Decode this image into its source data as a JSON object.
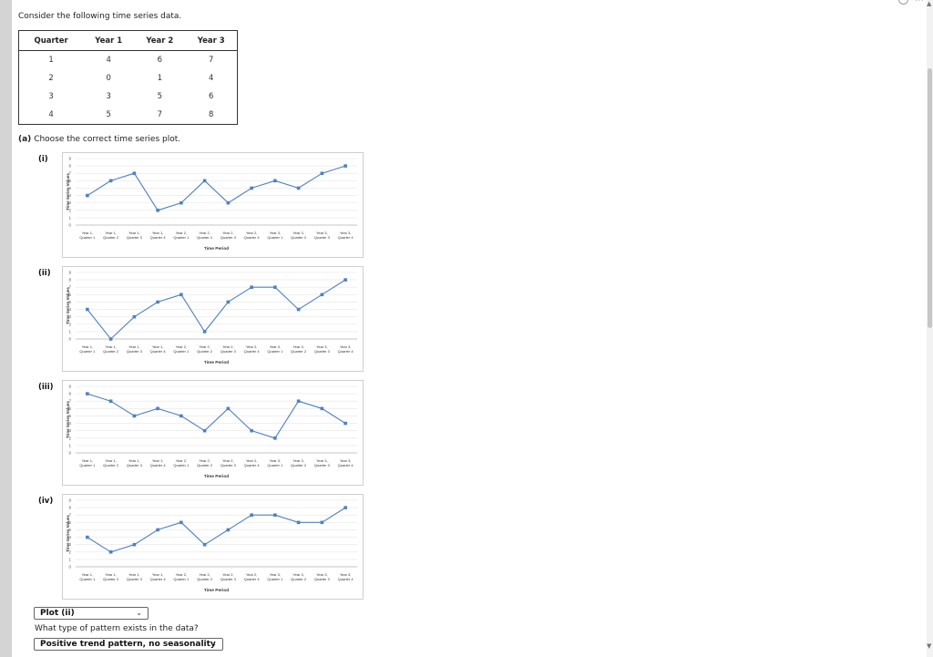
{
  "intro": "Consider the following time series data.",
  "table": {
    "headers": [
      "Quarter",
      "Year 1",
      "Year 2",
      "Year 3"
    ],
    "rows": [
      [
        "1",
        "4",
        "6",
        "7"
      ],
      [
        "2",
        "0",
        "1",
        "4"
      ],
      [
        "3",
        "3",
        "5",
        "6"
      ],
      [
        "4",
        "5",
        "7",
        "8"
      ]
    ]
  },
  "part_a": {
    "label": "(a)",
    "text": "Choose the correct time series plot."
  },
  "plots": [
    {
      "label": "(i)"
    },
    {
      "label": "(ii)"
    },
    {
      "label": "(iii)"
    },
    {
      "label": "(iv)"
    }
  ],
  "answer1": "Plot (ii)",
  "question2": "What type of pattern exists in the data?",
  "answer2": "Positive trend pattern, no seasonality",
  "chart_data": [
    {
      "type": "line",
      "title": "",
      "xlabel": "Time Period",
      "ylabel": "Time Series Values",
      "ylim": [
        0,
        9
      ],
      "y_ticks": [
        "0",
        "1",
        "2",
        "3",
        "4",
        "5",
        "6",
        "7",
        "8",
        "9"
      ],
      "categories": [
        [
          "Year 1,",
          "Quarter 1"
        ],
        [
          "Year 1,",
          "Quarter 2"
        ],
        [
          "Year 1,",
          "Quarter 3"
        ],
        [
          "Year 1,",
          "Quarter 4"
        ],
        [
          "Year 2,",
          "Quarter 1"
        ],
        [
          "Year 2,",
          "Quarter 2"
        ],
        [
          "Year 2,",
          "Quarter 3"
        ],
        [
          "Year 2,",
          "Quarter 4"
        ],
        [
          "Year 3,",
          "Quarter 1"
        ],
        [
          "Year 3,",
          "Quarter 2"
        ],
        [
          "Year 3,",
          "Quarter 3"
        ],
        [
          "Year 3,",
          "Quarter 4"
        ]
      ],
      "values": [
        4,
        6,
        7,
        2,
        3,
        6,
        3,
        5,
        6,
        5,
        7,
        8
      ],
      "color": "#4f81bd",
      "grid": true
    },
    {
      "type": "line",
      "title": "",
      "xlabel": "Time Period",
      "ylabel": "Time Series Values",
      "ylim": [
        0,
        9
      ],
      "y_ticks": [
        "0",
        "1",
        "2",
        "3",
        "4",
        "5",
        "6",
        "7",
        "8",
        "9"
      ],
      "categories": [
        [
          "Year 1,",
          "Quarter 1"
        ],
        [
          "Year 1,",
          "Quarter 2"
        ],
        [
          "Year 1,",
          "Quarter 3"
        ],
        [
          "Year 1,",
          "Quarter 4"
        ],
        [
          "Year 2,",
          "Quarter 1"
        ],
        [
          "Year 2,",
          "Quarter 2"
        ],
        [
          "Year 2,",
          "Quarter 3"
        ],
        [
          "Year 2,",
          "Quarter 4"
        ],
        [
          "Year 3,",
          "Quarter 1"
        ],
        [
          "Year 3,",
          "Quarter 2"
        ],
        [
          "Year 3,",
          "Quarter 3"
        ],
        [
          "Year 3,",
          "Quarter 4"
        ]
      ],
      "values": [
        4,
        0,
        3,
        5,
        6,
        1,
        5,
        7,
        7,
        4,
        6,
        8
      ],
      "color": "#4f81bd",
      "grid": true
    },
    {
      "type": "line",
      "title": "",
      "xlabel": "Time Period",
      "ylabel": "Time Series Values",
      "ylim": [
        0,
        9
      ],
      "y_ticks": [
        "0",
        "1",
        "2",
        "3",
        "4",
        "5",
        "6",
        "7",
        "8",
        "9"
      ],
      "categories": [
        [
          "Year 1,",
          "Quarter 1"
        ],
        [
          "Year 1,",
          "Quarter 2"
        ],
        [
          "Year 1,",
          "Quarter 3"
        ],
        [
          "Year 1,",
          "Quarter 4"
        ],
        [
          "Year 2,",
          "Quarter 1"
        ],
        [
          "Year 2,",
          "Quarter 2"
        ],
        [
          "Year 2,",
          "Quarter 3"
        ],
        [
          "Year 2,",
          "Quarter 4"
        ],
        [
          "Year 3,",
          "Quarter 1"
        ],
        [
          "Year 3,",
          "Quarter 2"
        ],
        [
          "Year 3,",
          "Quarter 3"
        ],
        [
          "Year 3,",
          "Quarter 4"
        ]
      ],
      "values": [
        8,
        7,
        5,
        6,
        5,
        3,
        6,
        3,
        2,
        7,
        6,
        4
      ],
      "color": "#4f81bd",
      "grid": true
    },
    {
      "type": "line",
      "title": "",
      "xlabel": "Time Period",
      "ylabel": "Time Series Values",
      "ylim": [
        0,
        9
      ],
      "y_ticks": [
        "0",
        "1",
        "2",
        "3",
        "4",
        "5",
        "6",
        "7",
        "8",
        "9"
      ],
      "categories": [
        [
          "Year 1,",
          "Quarter 1"
        ],
        [
          "Year 1,",
          "Quarter 2"
        ],
        [
          "Year 1,",
          "Quarter 3"
        ],
        [
          "Year 1,",
          "Quarter 4"
        ],
        [
          "Year 2,",
          "Quarter 1"
        ],
        [
          "Year 2,",
          "Quarter 2"
        ],
        [
          "Year 2,",
          "Quarter 3"
        ],
        [
          "Year 2,",
          "Quarter 4"
        ],
        [
          "Year 3,",
          "Quarter 1"
        ],
        [
          "Year 3,",
          "Quarter 2"
        ],
        [
          "Year 3,",
          "Quarter 3"
        ],
        [
          "Year 3,",
          "Quarter 4"
        ]
      ],
      "values": [
        4,
        2,
        3,
        5,
        6,
        3,
        5,
        7,
        7,
        6,
        6,
        8
      ],
      "color": "#4f81bd",
      "grid": true
    }
  ]
}
